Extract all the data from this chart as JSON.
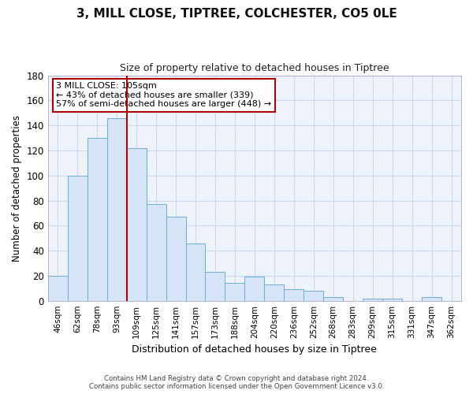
{
  "title": "3, MILL CLOSE, TIPTREE, COLCHESTER, CO5 0LE",
  "subtitle": "Size of property relative to detached houses in Tiptree",
  "xlabel": "Distribution of detached houses by size in Tiptree",
  "ylabel": "Number of detached properties",
  "categories": [
    "46sqm",
    "62sqm",
    "78sqm",
    "93sqm",
    "109sqm",
    "125sqm",
    "141sqm",
    "157sqm",
    "173sqm",
    "188sqm",
    "204sqm",
    "220sqm",
    "236sqm",
    "252sqm",
    "268sqm",
    "283sqm",
    "299sqm",
    "315sqm",
    "331sqm",
    "347sqm",
    "362sqm"
  ],
  "values": [
    20,
    100,
    130,
    146,
    122,
    77,
    67,
    46,
    23,
    14,
    19,
    13,
    9,
    8,
    3,
    0,
    2,
    2,
    0,
    3,
    0
  ],
  "bar_color": "#d6e4f7",
  "bar_edge_color": "#6baed6",
  "vline_x_index": 4,
  "vline_color": "#aa0000",
  "ylim": [
    0,
    180
  ],
  "yticks": [
    0,
    20,
    40,
    60,
    80,
    100,
    120,
    140,
    160,
    180
  ],
  "annotation_text": "3 MILL CLOSE: 105sqm\n← 43% of detached houses are smaller (339)\n57% of semi-detached houses are larger (448) →",
  "annotation_box_facecolor": "#ffffff",
  "annotation_box_edgecolor": "#aa0000",
  "footer_line1": "Contains HM Land Registry data © Crown copyright and database right 2024.",
  "footer_line2": "Contains public sector information licensed under the Open Government Licence v3.0.",
  "background_color": "#ffffff",
  "plot_bg_color": "#eef3fb",
  "grid_color": "#c8d8ee"
}
